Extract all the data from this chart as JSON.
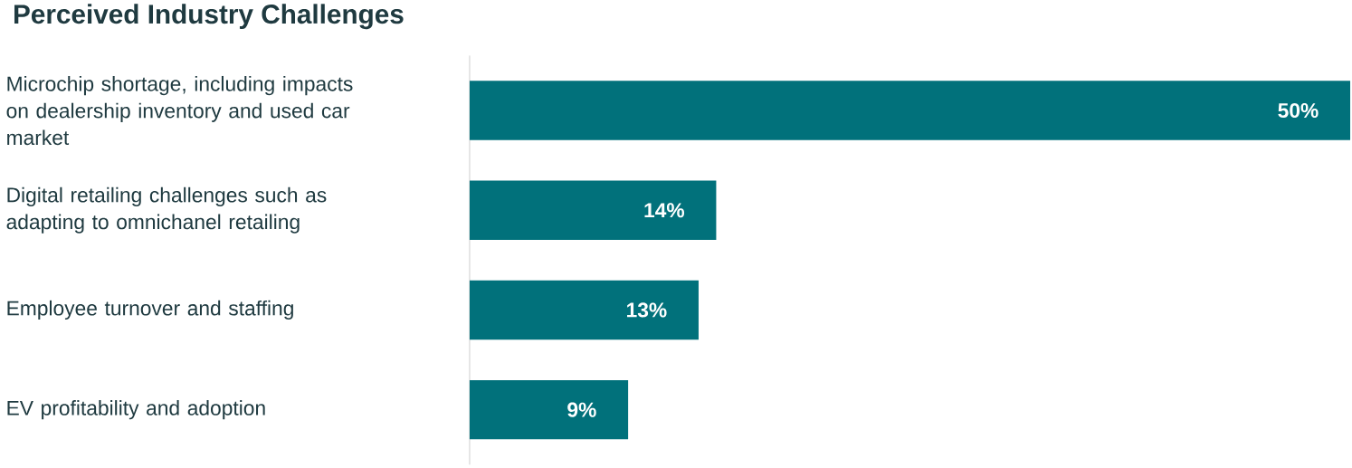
{
  "chart_data": {
    "type": "bar",
    "orientation": "horizontal",
    "title": "Perceived Industry Challenges",
    "categories": [
      "Microchip shortage, including impacts on dealership inventory and used car market",
      "Digital retailing challenges such as adapting to omnichanel retailing",
      "Employee turnover and staffing",
      "EV profitability and adoption"
    ],
    "values": [
      50,
      14,
      13,
      9
    ],
    "value_labels": [
      "50%",
      "14%",
      "13%",
      "9%"
    ],
    "color": "#01717b"
  }
}
